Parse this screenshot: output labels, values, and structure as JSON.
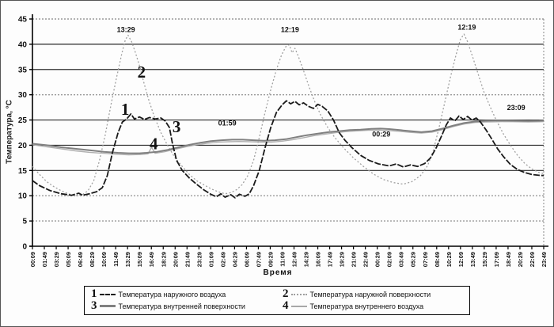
{
  "chart_data": {
    "type": "line",
    "title": "",
    "xlabel": "Время",
    "ylabel": "Температура, °С",
    "ylim": [
      0,
      45
    ],
    "y_ticks": [
      0,
      5,
      10,
      15,
      20,
      25,
      30,
      35,
      40,
      45
    ],
    "solid_gridlines": [
      15,
      20,
      25,
      35,
      40
    ],
    "dotted_gridlines": [
      5,
      10,
      30,
      45
    ],
    "x_hours_span": 71.667,
    "x_tick_step_minutes": 100,
    "x_ticks": [
      "00:09",
      "01:49",
      "03:29",
      "05:09",
      "06:49",
      "08:29",
      "10:09",
      "11:49",
      "13:29",
      "15:09",
      "16:49",
      "18:29",
      "20:09",
      "21:49",
      "23:29",
      "01:09",
      "02:49",
      "04:29",
      "06:09",
      "07:49",
      "09:29",
      "11:09",
      "12:49",
      "14:29",
      "16:09",
      "17:49",
      "19:29",
      "21:09",
      "22:49",
      "00:29",
      "02:09",
      "03:49",
      "05:29",
      "07:09",
      "08:49",
      "10:29",
      "12:09",
      "13:49",
      "15:29",
      "17:09",
      "18:49",
      "20:29",
      "22:09",
      "23:49"
    ],
    "grid": true,
    "legend_position": "bottom",
    "series": [
      {
        "number": "1",
        "name": "Температура наружного воздуха",
        "color": "#1a1a1a",
        "width": 1.8,
        "dash": "8 2",
        "points": [
          [
            0,
            13
          ],
          [
            1,
            12
          ],
          [
            2.5,
            11
          ],
          [
            4,
            10.4
          ],
          [
            5.5,
            10.1
          ],
          [
            6.5,
            10.5
          ],
          [
            7,
            10.1
          ],
          [
            8,
            10.4
          ],
          [
            9,
            10.8
          ],
          [
            9.8,
            11.6
          ],
          [
            10.5,
            14
          ],
          [
            11.2,
            18.5
          ],
          [
            12,
            22.5
          ],
          [
            12.6,
            24.6
          ],
          [
            13.2,
            25.2
          ],
          [
            13.8,
            26.2
          ],
          [
            14.3,
            25.2
          ],
          [
            15,
            25.6
          ],
          [
            15.7,
            25.1
          ],
          [
            16.4,
            25.5
          ],
          [
            17.2,
            25.2
          ],
          [
            18,
            25.4
          ],
          [
            18.6,
            24.8
          ],
          [
            19.2,
            23.5
          ],
          [
            19.6,
            20.5
          ],
          [
            20.2,
            17
          ],
          [
            21,
            15
          ],
          [
            22,
            13.5
          ],
          [
            23,
            12.3
          ],
          [
            24,
            11.2
          ],
          [
            25,
            10.3
          ],
          [
            25.8,
            9.8
          ],
          [
            26.4,
            10.4
          ],
          [
            27,
            9.7
          ],
          [
            27.8,
            10.2
          ],
          [
            28.4,
            9.6
          ],
          [
            29,
            10.3
          ],
          [
            29.8,
            9.9
          ],
          [
            30.4,
            10.4
          ],
          [
            31,
            12
          ],
          [
            31.8,
            15
          ],
          [
            32.6,
            19.5
          ],
          [
            33.4,
            23.5
          ],
          [
            34.2,
            26.5
          ],
          [
            35,
            28
          ],
          [
            35.6,
            28.8
          ],
          [
            36.2,
            28.2
          ],
          [
            36.8,
            28.7
          ],
          [
            37.4,
            28
          ],
          [
            38,
            28.4
          ],
          [
            38.7,
            27.7
          ],
          [
            39.4,
            27.3
          ],
          [
            40,
            28.1
          ],
          [
            40.6,
            27.7
          ],
          [
            41.4,
            26.8
          ],
          [
            42.2,
            25
          ],
          [
            43,
            22.5
          ],
          [
            43.8,
            21
          ],
          [
            44.8,
            19.5
          ],
          [
            46,
            18
          ],
          [
            47.2,
            17
          ],
          [
            48.5,
            16.3
          ],
          [
            50,
            15.9
          ],
          [
            51,
            16.3
          ],
          [
            52,
            15.7
          ],
          [
            53,
            16.1
          ],
          [
            54,
            15.8
          ],
          [
            55,
            16.4
          ],
          [
            55.8,
            17.5
          ],
          [
            56.6,
            19.5
          ],
          [
            57.4,
            22
          ],
          [
            58,
            24
          ],
          [
            58.6,
            25.4
          ],
          [
            59.2,
            24.8
          ],
          [
            59.8,
            25.8
          ],
          [
            60.4,
            25.1
          ],
          [
            61,
            25.7
          ],
          [
            61.6,
            25
          ],
          [
            62.2,
            25.4
          ],
          [
            62.8,
            24.6
          ],
          [
            63.6,
            23
          ],
          [
            64.4,
            21.2
          ],
          [
            65.2,
            19.3
          ],
          [
            66,
            17.8
          ],
          [
            67,
            16.2
          ],
          [
            68,
            15.2
          ],
          [
            69,
            14.6
          ],
          [
            70,
            14.2
          ],
          [
            71,
            14.05
          ],
          [
            71.667,
            14
          ]
        ]
      },
      {
        "number": "2",
        "name": "Температура наружной поверхности",
        "color": "#a0a0a0",
        "width": 1.3,
        "dash": "2 2.5",
        "points": [
          [
            0,
            15.8
          ],
          [
            1,
            14.2
          ],
          [
            2,
            12.8
          ],
          [
            3,
            11.8
          ],
          [
            4,
            11
          ],
          [
            5,
            10.4
          ],
          [
            6,
            10
          ],
          [
            7,
            10.2
          ],
          [
            7.8,
            11
          ],
          [
            8.6,
            13
          ],
          [
            9.4,
            17
          ],
          [
            10.2,
            22
          ],
          [
            11,
            28
          ],
          [
            11.8,
            33.5
          ],
          [
            12.5,
            38
          ],
          [
            13,
            40.8
          ],
          [
            13.4,
            41.8
          ],
          [
            13.9,
            40.5
          ],
          [
            14.4,
            38.5
          ],
          [
            15,
            35.8
          ],
          [
            15.6,
            32.5
          ],
          [
            16.3,
            29
          ],
          [
            17,
            26
          ],
          [
            18,
            22.5
          ],
          [
            19,
            19.8
          ],
          [
            20,
            17.5
          ],
          [
            21,
            15.8
          ],
          [
            22,
            14.2
          ],
          [
            23,
            13
          ],
          [
            24,
            12.2
          ],
          [
            25,
            11.4
          ],
          [
            26,
            10.8
          ],
          [
            27,
            10.4
          ],
          [
            27.8,
            10.6
          ],
          [
            28.6,
            11.2
          ],
          [
            29.4,
            12.2
          ],
          [
            30.2,
            14
          ],
          [
            31,
            17
          ],
          [
            31.8,
            21.5
          ],
          [
            32.6,
            26.5
          ],
          [
            33.4,
            31
          ],
          [
            34.2,
            35
          ],
          [
            34.9,
            37.8
          ],
          [
            35.5,
            39.5
          ],
          [
            36,
            39.9
          ],
          [
            36.4,
            38.3
          ],
          [
            36.8,
            39.2
          ],
          [
            37.3,
            37.5
          ],
          [
            38,
            34.8
          ],
          [
            38.8,
            31.5
          ],
          [
            39.6,
            28.5
          ],
          [
            40.4,
            26
          ],
          [
            41.4,
            23.5
          ],
          [
            42.4,
            21.5
          ],
          [
            43.6,
            19.5
          ],
          [
            45,
            17.5
          ],
          [
            46.4,
            15.8
          ],
          [
            47.8,
            14.3
          ],
          [
            49.2,
            13.2
          ],
          [
            50.6,
            12.6
          ],
          [
            52,
            12.3
          ],
          [
            53.2,
            12.8
          ],
          [
            54.4,
            14
          ],
          [
            55.4,
            16
          ],
          [
            56.2,
            19
          ],
          [
            57,
            23.5
          ],
          [
            57.8,
            28.5
          ],
          [
            58.6,
            33.5
          ],
          [
            59.4,
            38
          ],
          [
            60,
            41
          ],
          [
            60.5,
            42
          ],
          [
            61,
            40.5
          ],
          [
            61.7,
            37.5
          ],
          [
            62.5,
            34
          ],
          [
            63.3,
            30.5
          ],
          [
            64.1,
            27.8
          ],
          [
            65,
            25
          ],
          [
            66,
            22.3
          ],
          [
            67,
            20
          ],
          [
            68,
            18
          ],
          [
            69,
            16.4
          ],
          [
            70,
            15.3
          ],
          [
            71,
            14.6
          ],
          [
            71.667,
            14.4
          ]
        ]
      },
      {
        "number": "3",
        "name": "Температура внутренней поверхности",
        "color": "#808080",
        "width": 2,
        "dash": "",
        "points": [
          [
            0,
            20.3
          ],
          [
            2,
            20
          ],
          [
            4,
            19.6
          ],
          [
            6,
            19.3
          ],
          [
            8,
            19
          ],
          [
            10,
            18.7
          ],
          [
            12,
            18.5
          ],
          [
            13.5,
            18.4
          ],
          [
            15,
            18.4
          ],
          [
            16,
            18.5
          ],
          [
            17.5,
            18.7
          ],
          [
            19,
            19.1
          ],
          [
            20.5,
            19.6
          ],
          [
            22,
            20.1
          ],
          [
            23.5,
            20.5
          ],
          [
            25,
            20.8
          ],
          [
            26.5,
            21
          ],
          [
            28,
            21.1
          ],
          [
            29.5,
            21.1
          ],
          [
            31,
            21
          ],
          [
            32.5,
            20.9
          ],
          [
            34,
            21
          ],
          [
            35.5,
            21.2
          ],
          [
            37,
            21.6
          ],
          [
            38.5,
            22
          ],
          [
            40,
            22.3
          ],
          [
            41.5,
            22.6
          ],
          [
            43,
            22.8
          ],
          [
            44.5,
            23
          ],
          [
            46,
            23.1
          ],
          [
            47.5,
            23.25
          ],
          [
            48.8,
            23.3
          ],
          [
            50,
            23.2
          ],
          [
            51.5,
            23
          ],
          [
            53,
            22.8
          ],
          [
            54.5,
            22.6
          ],
          [
            56,
            22.8
          ],
          [
            57.5,
            23.3
          ],
          [
            59,
            23.9
          ],
          [
            60.5,
            24.4
          ],
          [
            62,
            24.7
          ],
          [
            63.5,
            24.85
          ],
          [
            65,
            24.9
          ],
          [
            66.5,
            24.9
          ],
          [
            68,
            24.85
          ],
          [
            69.5,
            24.8
          ],
          [
            71,
            24.85
          ],
          [
            71.667,
            24.9
          ]
        ]
      },
      {
        "number": "4",
        "name": "Температура внутреннего воздуха",
        "color": "#b0b0b0",
        "width": 1.4,
        "dash": "",
        "points": [
          [
            0,
            20.1
          ],
          [
            2,
            19.7
          ],
          [
            4,
            19.3
          ],
          [
            6,
            18.9
          ],
          [
            8,
            18.6
          ],
          [
            10,
            18.4
          ],
          [
            12,
            18.2
          ],
          [
            13.5,
            18.1
          ],
          [
            15,
            18.15
          ],
          [
            16.2,
            18.3
          ],
          [
            16.7,
            19.6
          ],
          [
            17.2,
            18.4
          ],
          [
            18.5,
            18.7
          ],
          [
            20,
            19.2
          ],
          [
            21.5,
            19.7
          ],
          [
            23,
            20.1
          ],
          [
            24.5,
            20.4
          ],
          [
            26,
            20.6
          ],
          [
            27.5,
            20.7
          ],
          [
            29,
            20.75
          ],
          [
            30.5,
            20.7
          ],
          [
            32,
            20.6
          ],
          [
            33.5,
            20.6
          ],
          [
            35,
            20.8
          ],
          [
            36.5,
            21.1
          ],
          [
            38,
            21.5
          ],
          [
            39.5,
            21.9
          ],
          [
            41,
            22.2
          ],
          [
            42.5,
            22.5
          ],
          [
            44,
            22.7
          ],
          [
            45.5,
            22.85
          ],
          [
            47,
            22.95
          ],
          [
            48.5,
            23
          ],
          [
            50,
            22.9
          ],
          [
            51.5,
            22.75
          ],
          [
            53,
            22.55
          ],
          [
            54.5,
            22.4
          ],
          [
            56,
            22.6
          ],
          [
            57.5,
            23.1
          ],
          [
            59,
            23.7
          ],
          [
            60.5,
            24.2
          ],
          [
            62,
            24.5
          ],
          [
            63.5,
            24.6
          ],
          [
            65,
            24.65
          ],
          [
            66.5,
            24.7
          ],
          [
            68,
            24.65
          ],
          [
            69.5,
            24.6
          ],
          [
            71,
            24.65
          ],
          [
            71.667,
            24.7
          ]
        ]
      }
    ],
    "annotations": [
      {
        "text": "13:29",
        "hour": 13.1,
        "temp": 42.4
      },
      {
        "text": "12:19",
        "hour": 36.1,
        "temp": 42.4
      },
      {
        "text": "01:59",
        "hour": 27.3,
        "temp": 23.9
      },
      {
        "text": "00:29",
        "hour": 48.9,
        "temp": 21.7
      },
      {
        "text": "12:19",
        "hour": 60.9,
        "temp": 42.9
      },
      {
        "text": "23:09",
        "hour": 67.8,
        "temp": 27.0
      }
    ],
    "curve_labels": [
      {
        "text": "1",
        "hour": 13.0,
        "temp": 26.0
      },
      {
        "text": "2",
        "hour": 15.3,
        "temp": 33.4
      },
      {
        "text": "3",
        "hour": 20.2,
        "temp": 22.6
      },
      {
        "text": "4",
        "hour": 17.0,
        "temp": 19.2
      }
    ]
  },
  "axes": {
    "ylabel": "Температура, °С",
    "xlabel": "Время"
  },
  "legend": {
    "items": [
      {
        "number": "1",
        "label": "Температура наружного воздуха"
      },
      {
        "number": "2",
        "label": "Температура наружной поверхности"
      },
      {
        "number": "3",
        "label": "Температура внутренней поверхности"
      },
      {
        "number": "4",
        "label": "Температура внутреннего воздуха"
      }
    ]
  }
}
